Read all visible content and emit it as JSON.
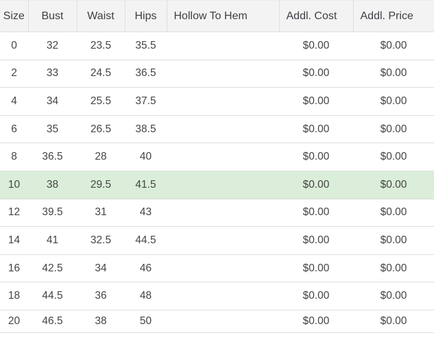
{
  "colors": {
    "header_bg": "#f3f3f3",
    "border": "#dedede",
    "highlight_bg": "#dbeed9",
    "header_text": "#3c4045",
    "body_text": "#444444",
    "page_bg": "#ffffff"
  },
  "table": {
    "columns": [
      {
        "key": "size",
        "label": "Size"
      },
      {
        "key": "bust",
        "label": "Bust"
      },
      {
        "key": "waist",
        "label": "Waist"
      },
      {
        "key": "hips",
        "label": "Hips"
      },
      {
        "key": "hollow_to_hem",
        "label": "Hollow To Hem"
      },
      {
        "key": "addl_cost",
        "label": "Addl. Cost"
      },
      {
        "key": "addl_price",
        "label": "Addl. Price"
      }
    ],
    "rows": [
      {
        "size": "0",
        "bust": "32",
        "waist": "23.5",
        "hips": "35.5",
        "hollow_to_hem": "",
        "addl_cost": "$0.00",
        "addl_price": "$0.00",
        "highlighted": false
      },
      {
        "size": "2",
        "bust": "33",
        "waist": "24.5",
        "hips": "36.5",
        "hollow_to_hem": "",
        "addl_cost": "$0.00",
        "addl_price": "$0.00",
        "highlighted": false
      },
      {
        "size": "4",
        "bust": "34",
        "waist": "25.5",
        "hips": "37.5",
        "hollow_to_hem": "",
        "addl_cost": "$0.00",
        "addl_price": "$0.00",
        "highlighted": false
      },
      {
        "size": "6",
        "bust": "35",
        "waist": "26.5",
        "hips": "38.5",
        "hollow_to_hem": "",
        "addl_cost": "$0.00",
        "addl_price": "$0.00",
        "highlighted": false
      },
      {
        "size": "8",
        "bust": "36.5",
        "waist": "28",
        "hips": "40",
        "hollow_to_hem": "",
        "addl_cost": "$0.00",
        "addl_price": "$0.00",
        "highlighted": false
      },
      {
        "size": "10",
        "bust": "38",
        "waist": "29.5",
        "hips": "41.5",
        "hollow_to_hem": "",
        "addl_cost": "$0.00",
        "addl_price": "$0.00",
        "highlighted": true
      },
      {
        "size": "12",
        "bust": "39.5",
        "waist": "31",
        "hips": "43",
        "hollow_to_hem": "",
        "addl_cost": "$0.00",
        "addl_price": "$0.00",
        "highlighted": false
      },
      {
        "size": "14",
        "bust": "41",
        "waist": "32.5",
        "hips": "44.5",
        "hollow_to_hem": "",
        "addl_cost": "$0.00",
        "addl_price": "$0.00",
        "highlighted": false
      },
      {
        "size": "16",
        "bust": "42.5",
        "waist": "34",
        "hips": "46",
        "hollow_to_hem": "",
        "addl_cost": "$0.00",
        "addl_price": "$0.00",
        "highlighted": false
      },
      {
        "size": "18",
        "bust": "44.5",
        "waist": "36",
        "hips": "48",
        "hollow_to_hem": "",
        "addl_cost": "$0.00",
        "addl_price": "$0.00",
        "highlighted": false
      },
      {
        "size": "20",
        "bust": "46.5",
        "waist": "38",
        "hips": "50",
        "hollow_to_hem": "",
        "addl_cost": "$0.00",
        "addl_price": "$0.00",
        "highlighted": false
      }
    ]
  }
}
